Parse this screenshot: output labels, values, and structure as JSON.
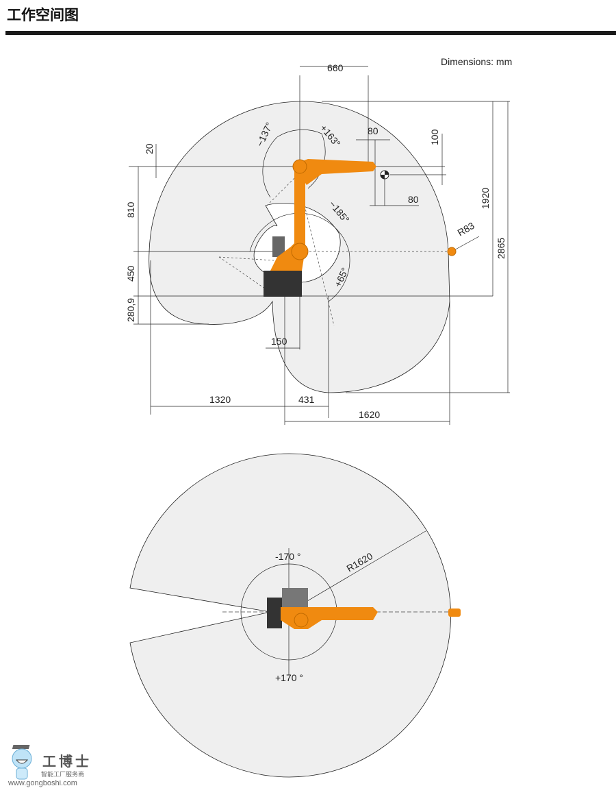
{
  "header": {
    "title": "工作空间图"
  },
  "side_view": {
    "units_label": "Dimensions: mm",
    "dims": {
      "d660": "660",
      "d80a": "80",
      "d100": "100",
      "d80b": "80",
      "d20": "20",
      "d810": "810",
      "d450": "450",
      "d280": "280,9",
      "d1920": "1920",
      "d2865": "2865",
      "r83": "R83",
      "d150": "150",
      "d1320": "1320",
      "d431": "431",
      "d1620": "1620"
    },
    "angles": {
      "a1": "−137°",
      "a2": "+163°",
      "a3": "−185°",
      "a4": "+65°"
    }
  },
  "top_view": {
    "angles": {
      "neg": "-170 °",
      "pos": "+170 °"
    },
    "radius": "R1620"
  },
  "colors": {
    "robot": "#f08a10",
    "envelope": "#efefef",
    "base": "#333333"
  },
  "watermark": {
    "name": "工博士",
    "tagline": "智能工厂服务商",
    "url": "www.gongboshi.com"
  }
}
